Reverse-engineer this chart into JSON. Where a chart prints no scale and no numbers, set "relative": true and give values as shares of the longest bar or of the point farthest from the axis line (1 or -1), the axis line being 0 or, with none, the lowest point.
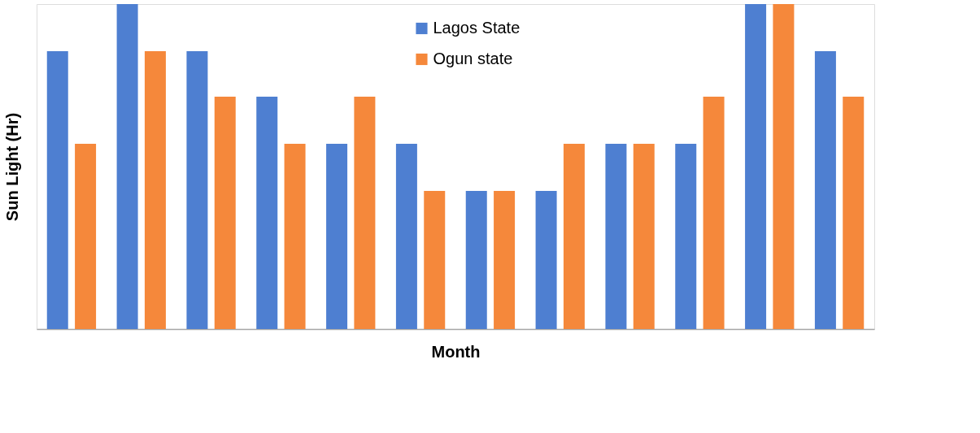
{
  "chart_data": {
    "type": "bar",
    "relative": true,
    "xlabel": "Month",
    "ylabel": "Sun Light (Hr)",
    "categories": [
      null,
      null,
      null,
      null,
      null,
      null,
      null,
      null,
      null,
      null,
      null,
      null
    ],
    "series": [
      {
        "name": "Lagos State",
        "color": "#4e7fd1",
        "values": [
          0.855,
          1,
          0.855,
          0.715,
          0.57,
          0.57,
          0.425,
          0.425,
          0.57,
          0.57,
          1,
          0.855
        ]
      },
      {
        "name": "Ogun state",
        "color": "#f5883b",
        "values": [
          0.57,
          0.855,
          0.715,
          0.57,
          0.715,
          0.425,
          0.425,
          0.57,
          0.57,
          0.715,
          1,
          0.715
        ]
      }
    ],
    "legend": "top",
    "grid": false,
    "tick_labels": false
  }
}
